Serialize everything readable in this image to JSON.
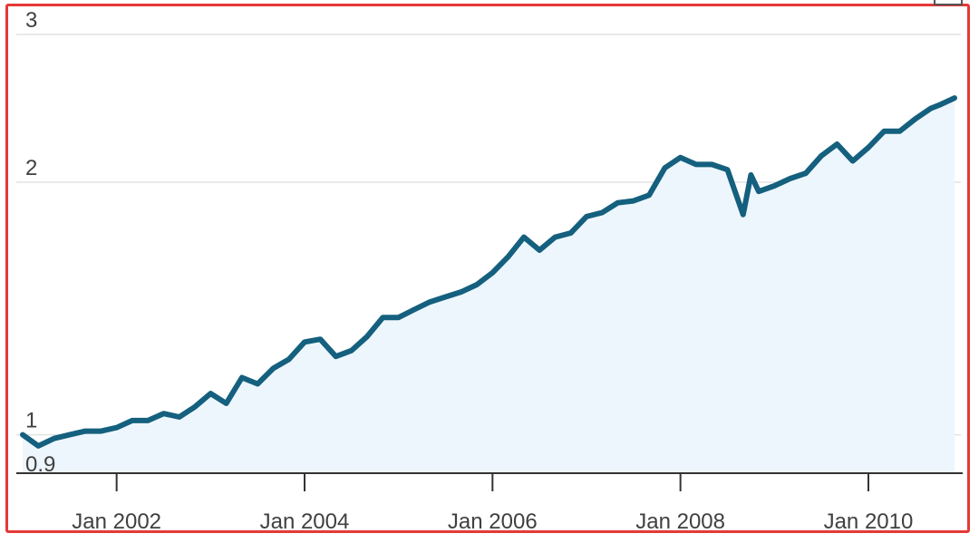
{
  "chart_data": {
    "type": "area",
    "title": "",
    "xlabel": "",
    "ylabel": "",
    "y_scale": "log",
    "ylim": [
      0.9,
      3
    ],
    "y_ticks": [
      {
        "value": 3,
        "label": "3"
      },
      {
        "value": 2,
        "label": "2"
      },
      {
        "value": 1,
        "label": "1"
      },
      {
        "value": 0.9,
        "label": "0.9"
      }
    ],
    "x_range": [
      "2001-01",
      "2010-12"
    ],
    "x_ticks": [
      {
        "date": "2002-01",
        "label": "Jan 2002"
      },
      {
        "date": "2004-01",
        "label": "Jan 2004"
      },
      {
        "date": "2006-01",
        "label": "Jan 2006"
      },
      {
        "date": "2008-01",
        "label": "Jan 2008"
      },
      {
        "date": "2010-01",
        "label": "Jan 2010"
      }
    ],
    "grid": "horizontal",
    "colors": {
      "line": "#14607e",
      "fill": "#eef6fd",
      "grid": "#e2e2e2",
      "axis": "#333333"
    },
    "series": [
      {
        "x": [
          "2001-01",
          "2001-03",
          "2001-05",
          "2001-07",
          "2001-09",
          "2001-11",
          "2002-01",
          "2002-03",
          "2002-05",
          "2002-07",
          "2002-09",
          "2002-11",
          "2003-01",
          "2003-03",
          "2003-05",
          "2003-07",
          "2003-09",
          "2003-11",
          "2004-01",
          "2004-03",
          "2004-05",
          "2004-07",
          "2004-09",
          "2004-11",
          "2005-01",
          "2005-03",
          "2005-05",
          "2005-07",
          "2005-09",
          "2005-11",
          "2006-01",
          "2006-03",
          "2006-05",
          "2006-07",
          "2006-09",
          "2006-11",
          "2007-01",
          "2007-03",
          "2007-05",
          "2007-07",
          "2007-09",
          "2007-11",
          "2008-01",
          "2008-03",
          "2008-05",
          "2008-07",
          "2008-09",
          "2008-10",
          "2008-11",
          "2009-01",
          "2009-03",
          "2009-05",
          "2009-07",
          "2009-09",
          "2009-11",
          "2010-01",
          "2010-03",
          "2010-05",
          "2010-07",
          "2010-09",
          "2010-10",
          "2010-12"
        ],
        "values": [
          1.0,
          0.97,
          0.99,
          1.0,
          1.01,
          1.01,
          1.02,
          1.04,
          1.04,
          1.06,
          1.05,
          1.08,
          1.12,
          1.09,
          1.17,
          1.15,
          1.2,
          1.23,
          1.29,
          1.3,
          1.24,
          1.26,
          1.31,
          1.38,
          1.38,
          1.41,
          1.44,
          1.46,
          1.48,
          1.51,
          1.56,
          1.63,
          1.72,
          1.66,
          1.72,
          1.74,
          1.82,
          1.84,
          1.89,
          1.9,
          1.93,
          2.08,
          2.14,
          2.1,
          2.1,
          2.07,
          1.83,
          2.04,
          1.95,
          1.98,
          2.02,
          2.05,
          2.15,
          2.22,
          2.12,
          2.2,
          2.3,
          2.3,
          2.38,
          2.45,
          2.47,
          2.52
        ]
      }
    ]
  }
}
